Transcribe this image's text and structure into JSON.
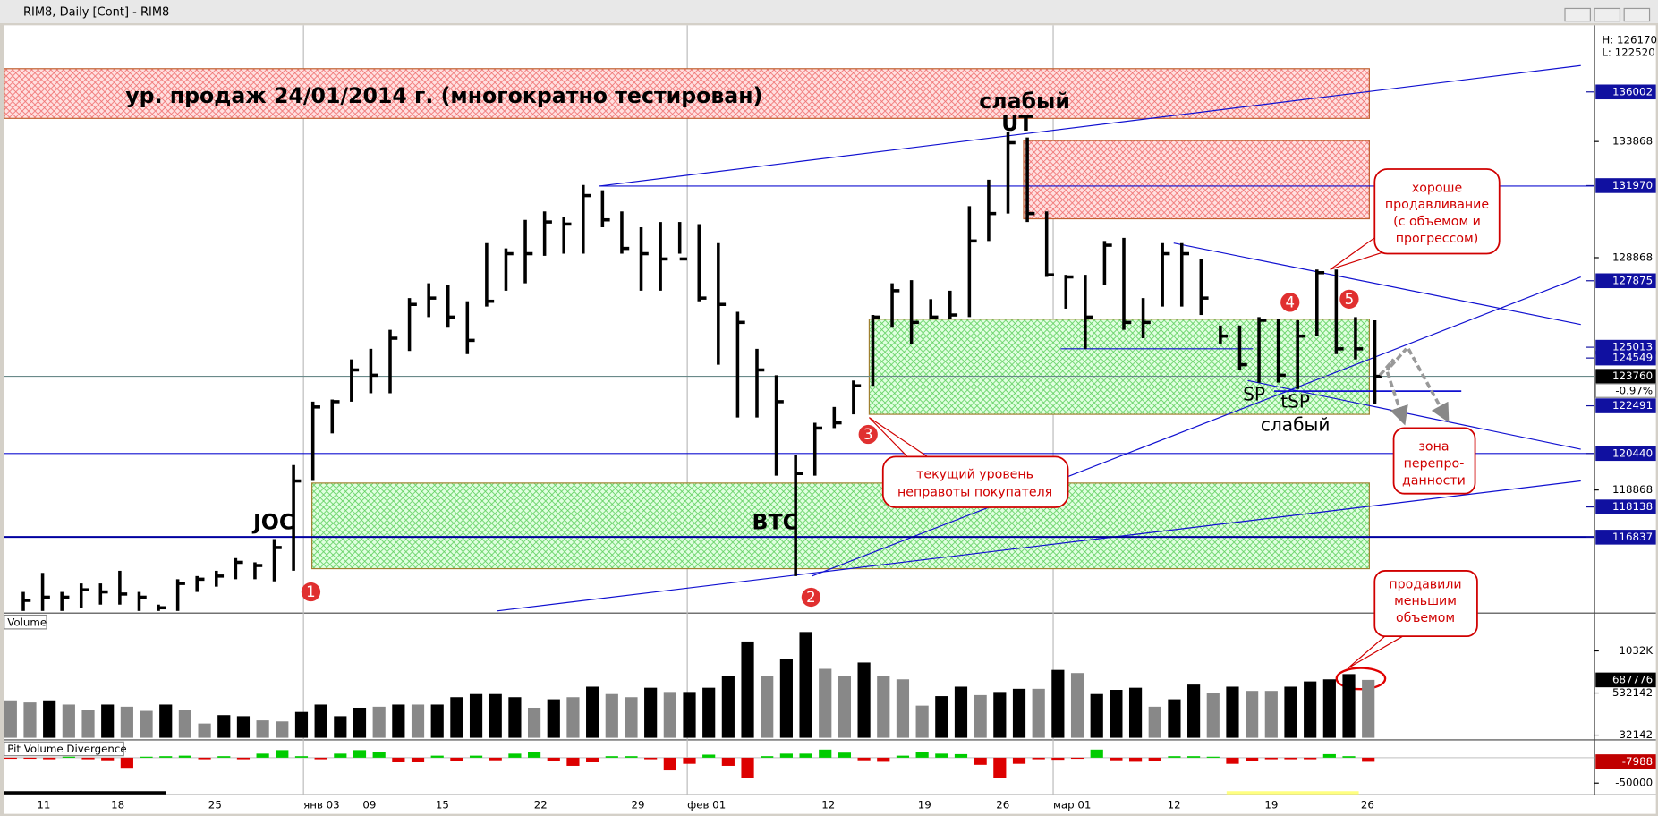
{
  "window": {
    "title": "RIM8, Daily [Cont] - RIM8"
  },
  "chart_data": [
    {
      "type": "ohlc",
      "legend": [
        "H: 126170",
        "L: 122520"
      ],
      "high": [
        114480,
        115299,
        114480,
        114844,
        114844,
        115390,
        114480,
        113934,
        115026,
        115162,
        115390,
        115936,
        115754,
        116755,
        119940,
        122670,
        122761,
        124490,
        124945,
        125764,
        127129,
        127766,
        127675,
        126992,
        129495,
        129267,
        130496,
        130860,
        130632,
        131997,
        131770,
        130860,
        130177,
        130405,
        130405,
        130314,
        129495,
        126537,
        124945,
        123807,
        120395,
        121760,
        122442,
        123580,
        126401,
        127766,
        127902,
        127083,
        127447,
        131087,
        132225,
        134272,
        134045,
        130860,
        128130,
        128130,
        129586,
        129722,
        127129,
        129495,
        129495,
        128812,
        125946,
        125946,
        126310,
        126219,
        126173,
        128357,
        128357,
        126310,
        126173
      ],
      "low": [
        113661,
        113661,
        113661,
        113797,
        113934,
        113934,
        113661,
        113661,
        113661,
        114480,
        114707,
        115026,
        115026,
        114935,
        115390,
        119257,
        121305,
        122670,
        123034,
        123034,
        124854,
        126310,
        125855,
        124717,
        126765,
        127447,
        127766,
        128949,
        129040,
        129040,
        130177,
        129040,
        127447,
        127447,
        129040,
        126992,
        124262,
        121987,
        121987,
        119485,
        115162,
        119485,
        121532,
        122124,
        123352,
        125855,
        125172,
        126219,
        126219,
        126310,
        129586,
        130769,
        130405,
        128039,
        126674,
        124945,
        127675,
        125764,
        125400,
        126765,
        126765,
        126401,
        125172,
        124035,
        123489,
        123489,
        123216,
        125491,
        124717,
        124490,
        122579
      ],
      "close": [
        114116,
        114252,
        114252,
        114571,
        114480,
        114389,
        114252,
        113797,
        114844,
        115026,
        115162,
        115754,
        115617,
        116391,
        119257,
        122442,
        122670,
        124035,
        123807,
        125400,
        126856,
        127129,
        126310,
        125309,
        126992,
        129040,
        129040,
        130405,
        130314,
        131542,
        130496,
        129267,
        129040,
        128812,
        128812,
        127129,
        126856,
        126082,
        124035,
        122670,
        119576,
        121532,
        121760,
        123352,
        126310,
        127447,
        126082,
        126310,
        126401,
        129586,
        130769,
        133817,
        130769,
        128130,
        128039,
        126310,
        129404,
        126082,
        126082,
        129040,
        129040,
        127129,
        125491,
        124262,
        126173,
        123807,
        125491,
        128221,
        124945,
        124945,
        123760
      ],
      "change": "-0.97%",
      "ylim": [
        113661,
        138686
      ],
      "yticks": [
        133868,
        128868,
        118868
      ],
      "levels": [
        136002,
        131970,
        127875,
        125013,
        124549,
        122491,
        120440,
        118138,
        116837
      ],
      "date_labels": [
        "11",
        "18",
        "25",
        "янв 03",
        "09",
        "15",
        "22",
        "29",
        "фев 01",
        "12",
        "19",
        "26",
        "мар 01",
        "12",
        "19",
        "26"
      ],
      "annotations": {
        "zone": "ур. продаж 24/01/2014 г. (многократно тестирован)",
        "weak_top": "слабый",
        "ut": "UT",
        "joc": "JOC",
        "btc": "BTC",
        "sp": "SP",
        "tsp": "tSP",
        "weak_bottom": "слабый",
        "good_push": [
          "хороше",
          "продавливание",
          "(с объемом и",
          "прогрессом)"
        ],
        "buyer_level": [
          "текущий уровень",
          "неправоты покупателя"
        ],
        "oversold": [
          "зона",
          "перепро-",
          "данности"
        ],
        "less_volume": [
          "продавили",
          "меньшим",
          "объемом"
        ],
        "markers": [
          "1",
          "2",
          "3",
          "4",
          "5"
        ]
      }
    },
    {
      "type": "bar",
      "title": "Volume",
      "values": [
        444642,
        419642,
        444642,
        394642,
        332142,
        394642,
        369142,
        319642,
        394642,
        332142,
        169642,
        269642,
        257142,
        207142,
        194642,
        307142,
        394642,
        257142,
        357142,
        369142,
        394642,
        394642,
        394642,
        482142,
        519642,
        519642,
        482142,
        357142,
        457142,
        482142,
        607142,
        519642,
        482142,
        594642,
        544642,
        544642,
        594642,
        732142,
        1144642,
        732142,
        932142,
        1257142,
        819642,
        732142,
        894642,
        732142,
        694642,
        382142,
        494642,
        607142,
        507142,
        544642,
        582142,
        582142,
        807142,
        769642,
        519642,
        569642,
        594642,
        369142,
        457142,
        632142,
        532142,
        607142,
        557142,
        557142,
        607142,
        669642,
        694642,
        757142,
        687776
      ],
      "bar_colors": [
        "#888",
        "#888",
        "#000",
        "#888",
        "#888",
        "#000",
        "#888",
        "#888",
        "#000",
        "#888",
        "#888",
        "#000",
        "#000",
        "#888",
        "#888",
        "#000",
        "#000",
        "#000",
        "#000",
        "#888",
        "#000",
        "#888",
        "#000",
        "#000",
        "#000",
        "#000",
        "#000",
        "#888",
        "#000",
        "#888",
        "#000",
        "#888",
        "#888",
        "#000",
        "#888",
        "#000",
        "#000",
        "#000",
        "#000",
        "#888",
        "#000",
        "#000",
        "#888",
        "#888",
        "#000",
        "#888",
        "#888",
        "#888",
        "#000",
        "#000",
        "#888",
        "#000",
        "#000",
        "#888",
        "#000",
        "#888",
        "#000",
        "#000",
        "#000",
        "#888",
        "#000",
        "#000",
        "#888",
        "#000",
        "#888",
        "#888",
        "#000",
        "#000",
        "#000",
        "#000",
        "#888"
      ],
      "ylim": [
        0,
        1457142
      ],
      "yticks": [
        {
          "value": 1032142,
          "label": "1032K"
        },
        532142,
        32142
      ]
    },
    {
      "type": "bar",
      "title": "Pit Volume Divergence",
      "values": [
        -2000,
        -2000,
        -3000,
        2000,
        -3000,
        -5000,
        -20000,
        2000,
        3000,
        4000,
        -3000,
        3000,
        -3000,
        8000,
        15000,
        3000,
        -3000,
        8000,
        15000,
        12000,
        -9000,
        -9000,
        4000,
        -6000,
        4000,
        -5000,
        8000,
        12000,
        -6000,
        -16000,
        -9000,
        3000,
        3000,
        -3000,
        -25000,
        -12000,
        6000,
        -16000,
        -40000,
        3000,
        8000,
        8000,
        16000,
        10000,
        -5000,
        -8000,
        4000,
        12000,
        8000,
        7000,
        -14000,
        -40000,
        -12000,
        -3000,
        -4000,
        -2000,
        16000,
        -5000,
        -8000,
        -6000,
        3000,
        3000,
        2000,
        -12000,
        -6000,
        -3000,
        -3000,
        -3000,
        7000,
        3000,
        -7988
      ],
      "positive_color": "#00cc00",
      "negative_color": "#dd0000",
      "ylim": [
        -69000,
        31000
      ],
      "yticks": [
        -50000
      ]
    }
  ]
}
